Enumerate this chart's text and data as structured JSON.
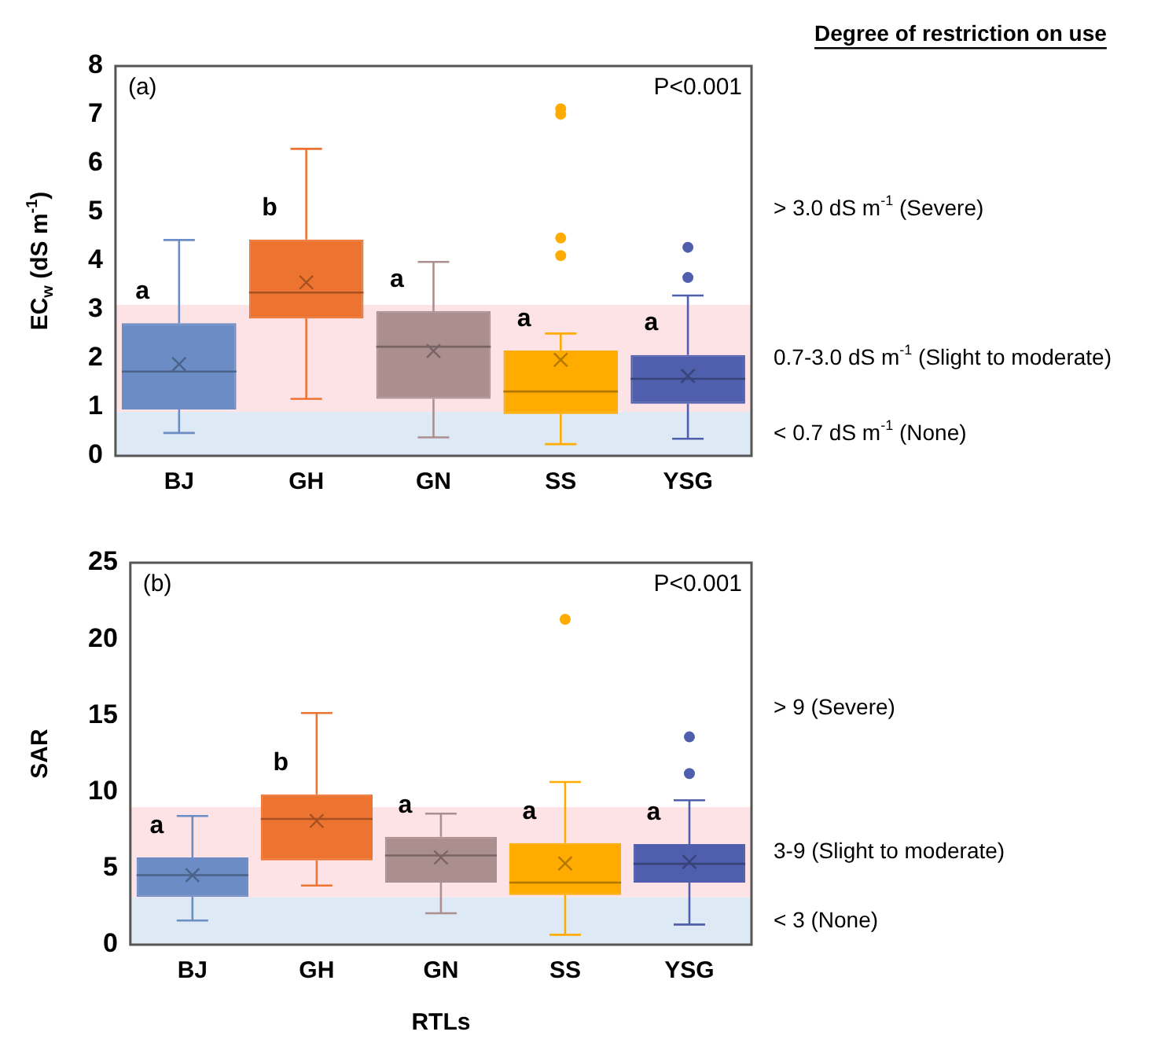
{
  "chart_data": [
    {
      "type": "box",
      "categories": [
        "BJ",
        "GH",
        "GN",
        "SS",
        "YSG"
      ],
      "ylabel": "EC$_{w}$ (dS m$^{-1}$)",
      "legend_title": "Degree of restriction on use",
      "ylim": [
        0,
        8
      ],
      "yticks": [
        0,
        1,
        2,
        3,
        4,
        5,
        6,
        7,
        8
      ],
      "legend": false,
      "colors": [
        "#6b8cc4",
        "#ed7330",
        "#ab8f8f",
        "#ffab00",
        "#4f5fad"
      ],
      "boxes": [
        {
          "low": 0.47,
          "q1": 0.95,
          "median": 1.73,
          "q3": 2.72,
          "high": 4.43,
          "mean": 1.88
        },
        {
          "low": 1.17,
          "q1": 2.82,
          "median": 3.35,
          "q3": 4.44,
          "high": 6.3,
          "mean": 3.56
        },
        {
          "low": 0.38,
          "q1": 1.17,
          "median": 2.24,
          "q3": 2.97,
          "high": 3.98,
          "mean": 2.15
        },
        {
          "low": 0.24,
          "q1": 0.86,
          "median": 1.32,
          "q3": 2.16,
          "high": 2.51,
          "mean": 1.97,
          "outliers": [
            7.12,
            7.01,
            4.47,
            4.11
          ]
        },
        {
          "low": 0.35,
          "q1": 1.07,
          "median": 1.58,
          "q3": 2.07,
          "high": 3.29,
          "mean": 1.64,
          "outliers": [
            4.28,
            3.66
          ]
        }
      ],
      "bands": [
        {
          "axis": "y",
          "from": 0.9,
          "to": 3.1,
          "label": "0.7-3.0 dS m$^{-1}$ (Slight to moderate)",
          "color": "#fde3e6"
        },
        {
          "axis": "y",
          "from": 0,
          "to": 0.9,
          "label": "< 0.7 dS m$^{-1}$ (None)",
          "color": "#dde9f4"
        }
      ],
      "annotations": [
        "(a)",
        "P<0.001",
        "a",
        "b",
        "a",
        "a",
        "a",
        "> 3.0 dS m$^{-1}$ (Severe)"
      ]
    },
    {
      "type": "box",
      "categories": [
        "BJ",
        "GH",
        "GN",
        "SS",
        "YSG"
      ],
      "xlabel": "RTLs",
      "ylabel": "SAR",
      "ylim": [
        0,
        25
      ],
      "yticks": [
        0,
        5,
        10,
        15,
        20,
        25
      ],
      "legend": false,
      "colors": [
        "#6b8cc4",
        "#ed7330",
        "#ab8f8f",
        "#ffab00",
        "#4f5fad"
      ],
      "boxes": [
        {
          "low": 1.58,
          "q1": 3.13,
          "median": 4.55,
          "q3": 5.71,
          "high": 8.42,
          "mean": 4.55
        },
        {
          "low": 3.87,
          "q1": 5.52,
          "median": 8.23,
          "q3": 9.84,
          "high": 15.16,
          "mean": 8.1
        },
        {
          "low": 2.06,
          "q1": 4.06,
          "median": 5.84,
          "q3": 7.06,
          "high": 8.58,
          "mean": 5.71
        },
        {
          "low": 0.65,
          "q1": 3.26,
          "median": 4.06,
          "q3": 6.65,
          "high": 10.65,
          "mean": 5.32,
          "outliers": [
            21.3
          ]
        },
        {
          "low": 1.32,
          "q1": 4.06,
          "median": 5.29,
          "q3": 6.58,
          "high": 9.45,
          "mean": 5.42,
          "outliers": [
            13.6,
            11.2
          ]
        }
      ],
      "bands": [
        {
          "axis": "y",
          "from": 3.1,
          "to": 9,
          "label": "3-9 (Slight to moderate)",
          "color": "#fde3e6"
        },
        {
          "axis": "y",
          "from": 0,
          "to": 3.1,
          "label": "< 3 (None)",
          "color": "#dde9f4"
        }
      ],
      "annotations": [
        "(b)",
        "P<0.001",
        "a",
        "b",
        "a",
        "a",
        "a",
        "> 9 (Severe)"
      ]
    }
  ]
}
